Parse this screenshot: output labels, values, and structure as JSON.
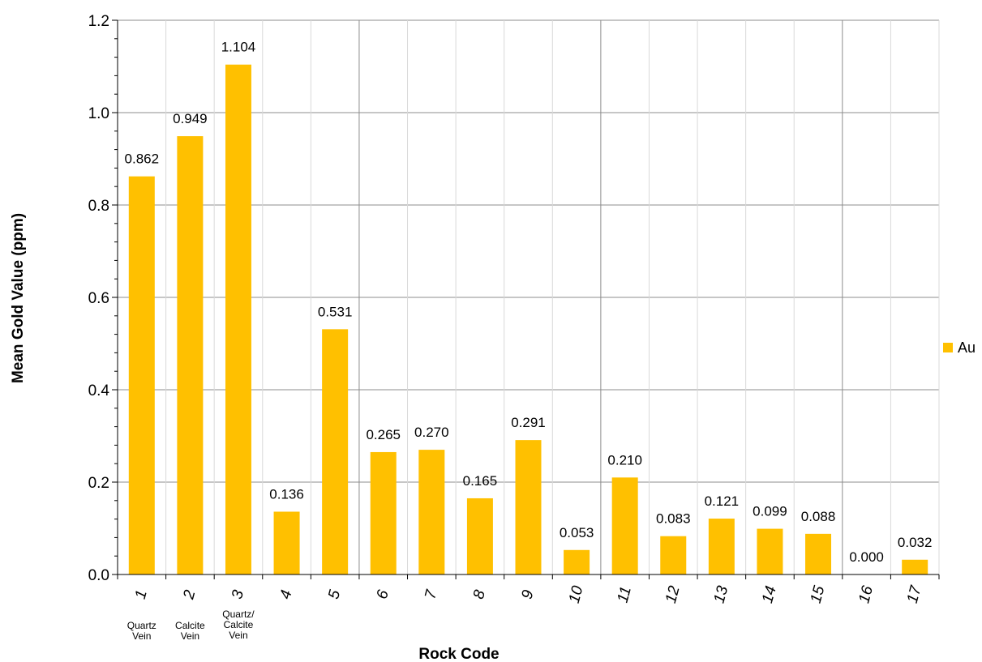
{
  "chart_data": {
    "type": "bar",
    "title": "",
    "xlabel": "Rock Code",
    "ylabel": "Mean Gold Value (ppm)",
    "ylim": [
      0,
      1.2
    ],
    "yticks": [
      "0.0",
      "0.2",
      "0.4",
      "0.6",
      "0.8",
      "1.0",
      "1.2"
    ],
    "categories": [
      "1",
      "2",
      "3",
      "4",
      "5",
      "6",
      "7",
      "8",
      "9",
      "10",
      "11",
      "12",
      "13",
      "14",
      "15",
      "16",
      "17"
    ],
    "category_notes": [
      [
        "Quartz",
        "Vein"
      ],
      [
        "Calcite",
        "Vein"
      ],
      [
        "Quartz/",
        "Calcite",
        "Vein"
      ]
    ],
    "series": [
      {
        "name": "Au",
        "color": "#FFC000",
        "values": [
          0.862,
          0.949,
          1.104,
          0.136,
          0.531,
          0.265,
          0.27,
          0.165,
          0.291,
          0.053,
          0.21,
          0.083,
          0.121,
          0.099,
          0.088,
          0.0,
          0.032
        ],
        "labels": [
          "0.862",
          "0.949",
          "1.104",
          "0.136",
          "0.531",
          "0.265",
          "0.270",
          "0.165",
          "0.291",
          "0.053",
          "0.210",
          "0.083",
          "0.121",
          "0.099",
          "0.088",
          "0.000",
          "0.032"
        ]
      }
    ],
    "grid": true,
    "legend": "right"
  }
}
